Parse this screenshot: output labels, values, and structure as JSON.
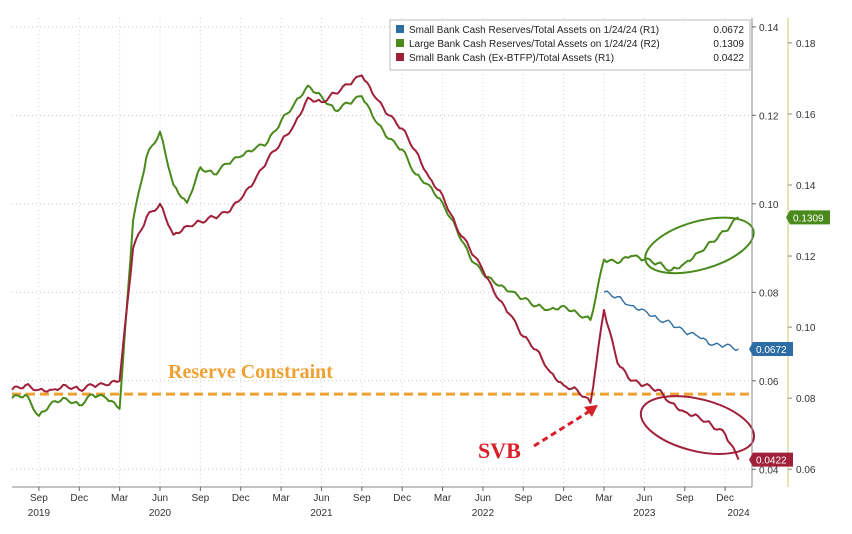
{
  "chart_data": {
    "type": "line",
    "x_axis": {
      "ticks": [
        {
          "label": "Sep",
          "x": "2019-09"
        },
        {
          "label": "Dec",
          "x": "2019-12"
        },
        {
          "label": "Mar",
          "x": "2020-03"
        },
        {
          "label": "Jun",
          "x": "2020-06"
        },
        {
          "label": "Sep",
          "x": "2020-09"
        },
        {
          "label": "Dec",
          "x": "2020-12"
        },
        {
          "label": "Mar",
          "x": "2021-03"
        },
        {
          "label": "Jun",
          "x": "2021-06"
        },
        {
          "label": "Sep",
          "x": "2021-09"
        },
        {
          "label": "Dec",
          "x": "2021-12"
        },
        {
          "label": "Mar",
          "x": "2022-03"
        },
        {
          "label": "Jun",
          "x": "2022-06"
        },
        {
          "label": "Sep",
          "x": "2022-09"
        },
        {
          "label": "Dec",
          "x": "2022-12"
        },
        {
          "label": "Mar",
          "x": "2023-03"
        },
        {
          "label": "Jun",
          "x": "2023-06"
        },
        {
          "label": "Sep",
          "x": "2023-09"
        },
        {
          "label": "Dec",
          "x": "2023-12"
        }
      ],
      "years": [
        {
          "label": "2019",
          "x": "2019-09"
        },
        {
          "label": "2020",
          "x": "2020-06"
        },
        {
          "label": "2021",
          "x": "2021-06"
        },
        {
          "label": "2022",
          "x": "2022-06"
        },
        {
          "label": "2023",
          "x": "2023-06"
        },
        {
          "label": "2024",
          "x": "2024-01"
        }
      ],
      "range": [
        "2019-07",
        "2024-02"
      ]
    },
    "y_axis_left": {
      "ticks": [
        "0.04",
        "0.06",
        "0.08",
        "0.10",
        "0.12",
        "0.14"
      ],
      "range": [
        0.036,
        0.142
      ]
    },
    "y_axis_right": {
      "ticks": [
        "0.06",
        "0.08",
        "0.10",
        "0.12",
        "0.14",
        "0.16",
        "0.18"
      ],
      "range": [
        0.055,
        0.187
      ]
    },
    "legend": {
      "placement": "top-right",
      "entries": [
        {
          "label": "Small Bank Cash Reserves/Total Assets on 1/24/24 (R1)",
          "value": "0.0672",
          "color": "#2e6da4"
        },
        {
          "label": "Large Bank Cash Reserves/Total Assets on 1/24/24 (R2)",
          "value": "0.1309",
          "color": "#4a8a1c"
        },
        {
          "label": "Small Bank Cash (Ex-BTFP)/Total Assets (R1)",
          "value": "0.0422",
          "color": "#a0203a"
        }
      ]
    },
    "series": [
      {
        "axis": "right",
        "color": "#4a8a1c",
        "points": [
          [
            "2019-07",
            0.08
          ],
          [
            "2019-08",
            0.081
          ],
          [
            "2019-09",
            0.075
          ],
          [
            "2019-10",
            0.079
          ],
          [
            "2019-11",
            0.08
          ],
          [
            "2019-12",
            0.078
          ],
          [
            "2020-01",
            0.081
          ],
          [
            "2020-02",
            0.08
          ],
          [
            "2020-03",
            0.077
          ],
          [
            "2020-04",
            0.13
          ],
          [
            "2020-05",
            0.148
          ],
          [
            "2020-06",
            0.155
          ],
          [
            "2020-07",
            0.14
          ],
          [
            "2020-08",
            0.135
          ],
          [
            "2020-09",
            0.145
          ],
          [
            "2020-10",
            0.143
          ],
          [
            "2020-11",
            0.146
          ],
          [
            "2020-12",
            0.148
          ],
          [
            "2021-01",
            0.15
          ],
          [
            "2021-02",
            0.152
          ],
          [
            "2021-03",
            0.158
          ],
          [
            "2021-04",
            0.163
          ],
          [
            "2021-05",
            0.168
          ],
          [
            "2021-06",
            0.165
          ],
          [
            "2021-07",
            0.161
          ],
          [
            "2021-08",
            0.163
          ],
          [
            "2021-09",
            0.165
          ],
          [
            "2021-10",
            0.158
          ],
          [
            "2021-11",
            0.153
          ],
          [
            "2021-12",
            0.15
          ],
          [
            "2022-01",
            0.143
          ],
          [
            "2022-02",
            0.14
          ],
          [
            "2022-03",
            0.135
          ],
          [
            "2022-04",
            0.128
          ],
          [
            "2022-05",
            0.12
          ],
          [
            "2022-06",
            0.115
          ],
          [
            "2022-07",
            0.112
          ],
          [
            "2022-08",
            0.11
          ],
          [
            "2022-09",
            0.108
          ],
          [
            "2022-10",
            0.106
          ],
          [
            "2022-11",
            0.105
          ],
          [
            "2022-12",
            0.106
          ],
          [
            "2023-01",
            0.104
          ],
          [
            "2023-02",
            0.102
          ],
          [
            "2023-03",
            0.119
          ],
          [
            "2023-04",
            0.118
          ],
          [
            "2023-05",
            0.12
          ],
          [
            "2023-06",
            0.119
          ],
          [
            "2023-07",
            0.118
          ],
          [
            "2023-08",
            0.116
          ],
          [
            "2023-09",
            0.118
          ],
          [
            "2023-10",
            0.121
          ],
          [
            "2023-11",
            0.124
          ],
          [
            "2023-12",
            0.127
          ],
          [
            "2024-01",
            0.1309
          ]
        ]
      },
      {
        "axis": "left",
        "color": "#a0203a",
        "points": [
          [
            "2019-07",
            0.058
          ],
          [
            "2019-08",
            0.059
          ],
          [
            "2019-09",
            0.058
          ],
          [
            "2019-10",
            0.058
          ],
          [
            "2019-11",
            0.059
          ],
          [
            "2019-12",
            0.058
          ],
          [
            "2020-01",
            0.059
          ],
          [
            "2020-02",
            0.059
          ],
          [
            "2020-03",
            0.06
          ],
          [
            "2020-04",
            0.09
          ],
          [
            "2020-05",
            0.097
          ],
          [
            "2020-06",
            0.1
          ],
          [
            "2020-07",
            0.093
          ],
          [
            "2020-08",
            0.095
          ],
          [
            "2020-09",
            0.096
          ],
          [
            "2020-10",
            0.097
          ],
          [
            "2020-11",
            0.098
          ],
          [
            "2020-12",
            0.101
          ],
          [
            "2021-01",
            0.105
          ],
          [
            "2021-02",
            0.11
          ],
          [
            "2021-03",
            0.114
          ],
          [
            "2021-04",
            0.118
          ],
          [
            "2021-05",
            0.124
          ],
          [
            "2021-06",
            0.123
          ],
          [
            "2021-07",
            0.125
          ],
          [
            "2021-08",
            0.127
          ],
          [
            "2021-09",
            0.129
          ],
          [
            "2021-10",
            0.124
          ],
          [
            "2021-11",
            0.12
          ],
          [
            "2021-12",
            0.117
          ],
          [
            "2022-01",
            0.112
          ],
          [
            "2022-02",
            0.106
          ],
          [
            "2022-03",
            0.102
          ],
          [
            "2022-04",
            0.095
          ],
          [
            "2022-05",
            0.09
          ],
          [
            "2022-06",
            0.085
          ],
          [
            "2022-07",
            0.079
          ],
          [
            "2022-08",
            0.075
          ],
          [
            "2022-09",
            0.07
          ],
          [
            "2022-10",
            0.067
          ],
          [
            "2022-11",
            0.062
          ],
          [
            "2022-12",
            0.059
          ],
          [
            "2023-01",
            0.058
          ],
          [
            "2023-02",
            0.055
          ],
          [
            "2023-03",
            0.076
          ],
          [
            "2023-04",
            0.064
          ],
          [
            "2023-05",
            0.06
          ],
          [
            "2023-06",
            0.059
          ],
          [
            "2023-07",
            0.058
          ],
          [
            "2023-08",
            0.055
          ],
          [
            "2023-09",
            0.053
          ],
          [
            "2023-10",
            0.052
          ],
          [
            "2023-11",
            0.05
          ],
          [
            "2023-12",
            0.048
          ],
          [
            "2024-01",
            0.0422
          ]
        ]
      },
      {
        "axis": "left",
        "color": "#2e6da4",
        "points": [
          [
            "2023-03",
            0.08
          ],
          [
            "2023-04",
            0.079
          ],
          [
            "2023-05",
            0.077
          ],
          [
            "2023-06",
            0.076
          ],
          [
            "2023-07",
            0.074
          ],
          [
            "2023-08",
            0.073
          ],
          [
            "2023-09",
            0.071
          ],
          [
            "2023-10",
            0.07
          ],
          [
            "2023-11",
            0.068
          ],
          [
            "2023-12",
            0.068
          ],
          [
            "2024-01",
            0.0672
          ]
        ]
      }
    ],
    "value_badges": [
      {
        "text": "0.1309",
        "axis": "right",
        "value": 0.1309,
        "color": "#4a8a1c"
      },
      {
        "text": "0.0672",
        "axis": "left",
        "value": 0.0672,
        "color": "#2e6da4"
      },
      {
        "text": "0.0422",
        "axis": "left",
        "value": 0.0422,
        "color": "#a0203a"
      }
    ],
    "reserve_line": {
      "axis": "left",
      "value": 0.057,
      "color": "#f0a030"
    },
    "annotations": {
      "reserve_text": "Reserve Constraint",
      "svb_text": "SVB",
      "svb_point": [
        "2023-03",
        0.055
      ]
    },
    "grid": true
  }
}
